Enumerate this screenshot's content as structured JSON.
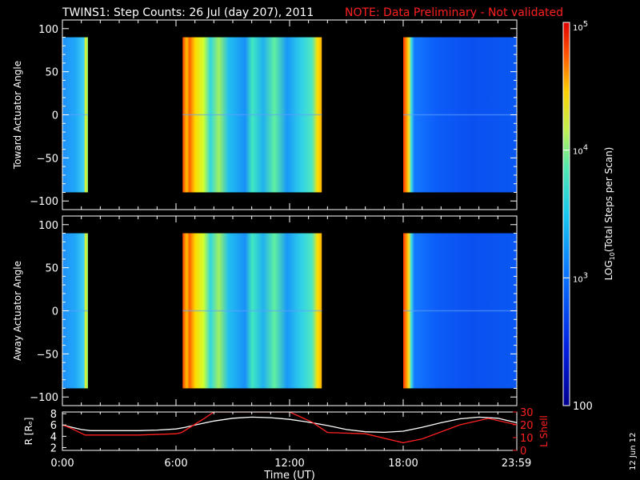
{
  "title": "TWINS1: Step Counts: 26 Jul (day 207), 2011",
  "note": "NOTE: Data Preliminary - Not validated",
  "date_stamp": "12 Jun 12",
  "colors": {
    "background": "#000000",
    "axis": "#ffffff",
    "note": "#ff2020",
    "lshell": "#ff2020"
  },
  "chart_data": [
    {
      "type": "heatmap",
      "panel": "toward",
      "ylabel": "Toward Actuator Angle",
      "ylim": [
        -110,
        110
      ],
      "yticks": [
        100,
        50,
        0,
        -50,
        -100
      ],
      "xlim": [
        0,
        24
      ],
      "angle_range": [
        -90,
        90
      ],
      "segments": [
        {
          "start": 0.0,
          "end": 1.35,
          "level": "mid"
        },
        {
          "start": 6.35,
          "end": 13.7,
          "level": "high"
        },
        {
          "start": 18.0,
          "end": 24.0,
          "level": "low"
        }
      ]
    },
    {
      "type": "heatmap",
      "panel": "away",
      "ylabel": "Away Actuator Angle",
      "ylim": [
        -110,
        110
      ],
      "yticks": [
        100,
        50,
        0,
        -50,
        -100
      ],
      "xlim": [
        0,
        24
      ],
      "angle_range": [
        -90,
        90
      ],
      "segments": [
        {
          "start": 0.0,
          "end": 1.35,
          "level": "mid"
        },
        {
          "start": 6.35,
          "end": 13.7,
          "level": "high"
        },
        {
          "start": 18.0,
          "end": 24.0,
          "level": "low"
        }
      ]
    },
    {
      "type": "line",
      "panel": "orbit",
      "ylabel_left": "R [Rₑ]",
      "ylabel_right": "L Shell",
      "yticks_left": [
        8,
        6,
        4,
        2
      ],
      "ylim_left": [
        1.5,
        8.3
      ],
      "yticks_right": [
        30,
        20,
        10,
        0
      ],
      "ylim_right": [
        0,
        30
      ],
      "xlim": [
        0,
        24
      ],
      "xticks": [
        "0:00",
        "6:00",
        "12:00",
        "18:00",
        "23:59"
      ],
      "xlabel": "Time (UT)",
      "series": [
        {
          "axis": "left",
          "color": "#ffffff",
          "x": [
            0,
            0.5,
            1,
            1.5,
            2,
            3,
            4,
            5,
            6,
            6.5,
            7,
            8,
            9,
            10,
            11,
            12,
            13,
            14,
            15,
            16,
            17,
            18,
            19,
            20,
            21,
            22,
            23,
            24
          ],
          "y": [
            6.0,
            5.6,
            5.2,
            5.0,
            5.0,
            5.0,
            5.0,
            5.1,
            5.3,
            5.6,
            6.0,
            6.7,
            7.2,
            7.4,
            7.3,
            7.0,
            6.5,
            5.9,
            5.2,
            4.8,
            4.7,
            4.9,
            5.6,
            6.4,
            7.1,
            7.4,
            7.2,
            6.4
          ]
        },
        {
          "axis": "right",
          "color": "#ff2020",
          "x": [
            0,
            0.5,
            1.2,
            2,
            4,
            6,
            6.3,
            7.5,
            8,
            8.3,
            11.6,
            12,
            13.2,
            14,
            16,
            18,
            19,
            21,
            22.5,
            24
          ],
          "y": [
            20,
            17,
            12,
            12,
            12,
            13,
            14,
            25,
            30,
            30,
            30,
            30,
            22,
            14,
            13,
            6,
            9,
            20,
            25,
            20
          ]
        }
      ]
    }
  ],
  "colorbar": {
    "label_prefix": "LOG",
    "label_sub": "10",
    "label_suffix": "(Total Steps per Scan)",
    "ticks": [
      {
        "base": "10",
        "exp": "5",
        "value": 100000
      },
      {
        "base": "10",
        "exp": "4",
        "value": 10000
      },
      {
        "base": "10",
        "exp": "3",
        "value": 1000
      },
      {
        "base": "100",
        "exp": "",
        "value": 100
      }
    ],
    "range": [
      100,
      100000
    ]
  }
}
